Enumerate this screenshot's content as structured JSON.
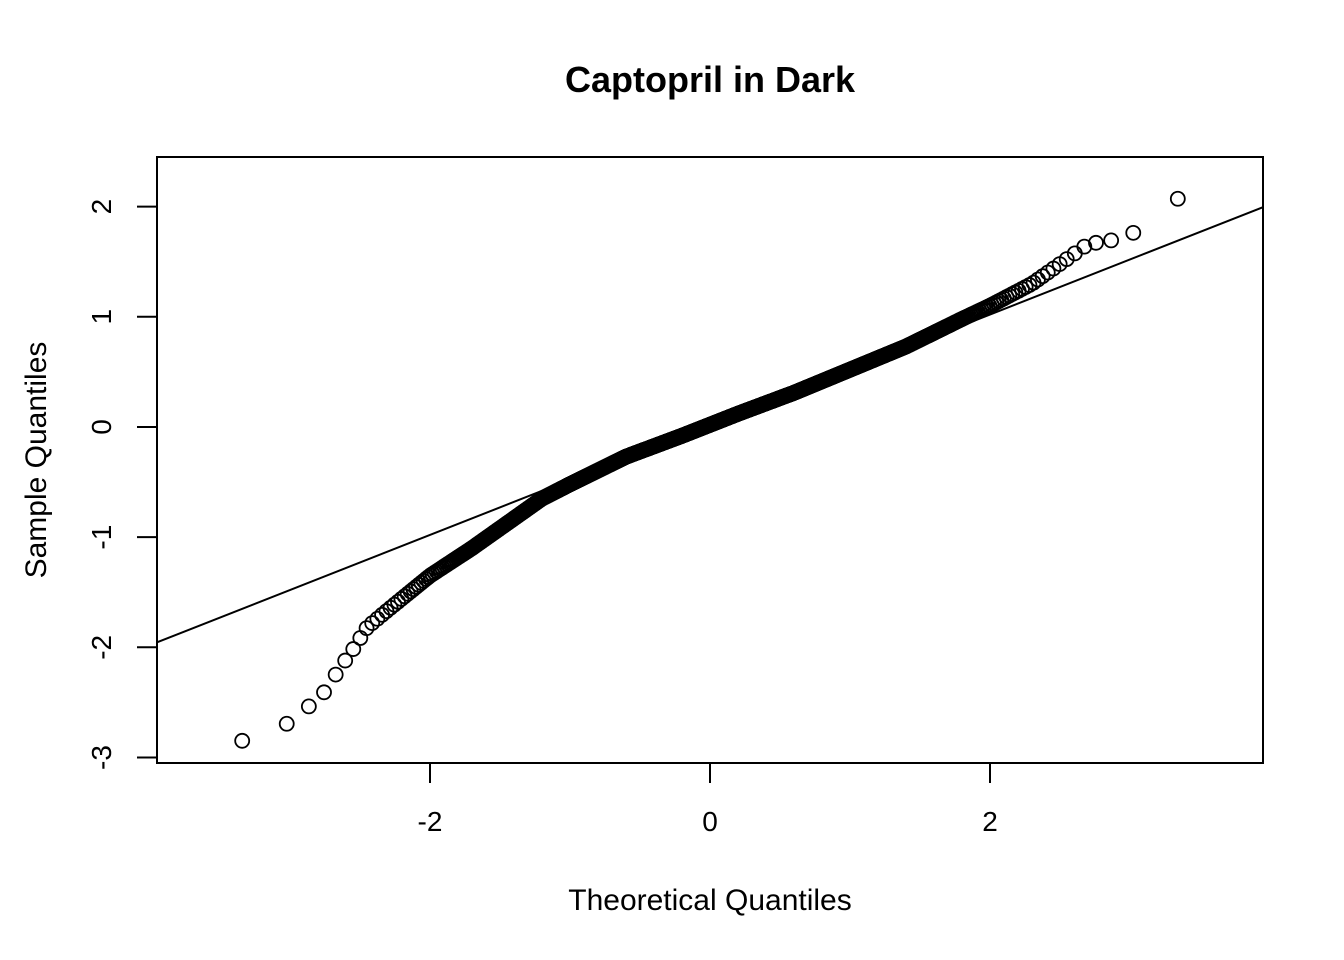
{
  "chart_data": {
    "type": "scatter",
    "title": "Captopril in Dark",
    "xlabel": "Theoretical Quantiles",
    "ylabel": "Sample Quantiles",
    "xlim": [
      -3.95,
      3.95
    ],
    "ylim": [
      -3.05,
      2.45
    ],
    "x_ticks": [
      -2,
      0,
      2
    ],
    "y_ticks": [
      -3,
      -2,
      -1,
      0,
      1,
      2
    ],
    "x_tick_labels": [
      "-2",
      "0",
      "2"
    ],
    "y_tick_labels": [
      "-3",
      "-2",
      "-1",
      "0",
      "1",
      "2"
    ],
    "grid": false,
    "legend": "none",
    "reference_line": {
      "intercept": 0.02,
      "slope": 0.5
    },
    "sample_size": 1200,
    "quantile_curve": {
      "x": [
        -3.65,
        -3.36,
        -3.2,
        -3.1,
        -3.0,
        -2.85,
        -2.75,
        -2.65,
        -2.55,
        -2.45,
        -2.3,
        -2.0,
        -1.7,
        -1.4,
        -1.2,
        -1.0,
        -0.6,
        -0.2,
        0.0,
        0.2,
        0.6,
        1.0,
        1.4,
        1.8,
        2.0,
        2.3,
        2.5,
        2.7,
        2.9,
        3.1,
        3.22,
        3.37,
        3.65
      ],
      "y": [
        -2.87,
        -2.86,
        -2.76,
        -2.74,
        -2.68,
        -2.52,
        -2.4,
        -2.2,
        -2.02,
        -1.82,
        -1.66,
        -1.35,
        -1.1,
        -0.83,
        -0.65,
        -0.52,
        -0.27,
        -0.08,
        0.02,
        0.12,
        0.31,
        0.52,
        0.73,
        0.98,
        1.1,
        1.3,
        1.48,
        1.66,
        1.7,
        1.8,
        1.99,
        2.09,
        2.24
      ]
    }
  }
}
